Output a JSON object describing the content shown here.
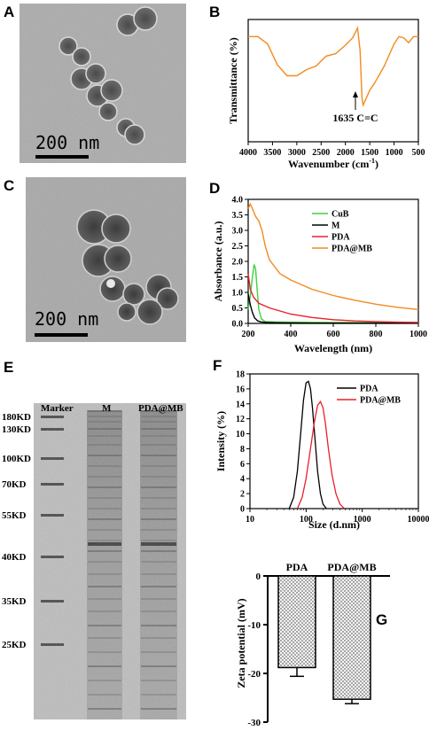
{
  "panels": {
    "A": {
      "label": "A",
      "scale_bar": "200 nm",
      "scale_value_nm": 200
    },
    "B": {
      "label": "B",
      "ylabel": "Transmittance (%)",
      "xlabel": "Wavenumber (cm",
      "xlabel_sup": "-1",
      "xlabel_close": ")",
      "annotation": "1635 C=C"
    },
    "C": {
      "label": "C",
      "scale_bar": "200 nm",
      "scale_value_nm": 200
    },
    "D": {
      "label": "D",
      "ylabel": "Absorbance (a.u.)",
      "xlabel": "Wavelength (nm)",
      "legend": [
        "CuB",
        "M",
        "PDA",
        "PDA@MB"
      ]
    },
    "E": {
      "label": "E",
      "col_headers": [
        "Marker",
        "M",
        "PDA@MB"
      ],
      "markers": [
        "180KD",
        "130KD",
        "100KD",
        "70KD",
        "55KD",
        "40KD",
        "35KD",
        "25KD"
      ]
    },
    "F": {
      "label": "F",
      "ylabel": "Intensity (%)",
      "xlabel": "Size (d.nm)",
      "legend": [
        "PDA",
        "PDA@MB"
      ]
    },
    "G": {
      "label": "G",
      "ylabel": "Zeta potential (mV)",
      "categories": [
        "PDA",
        "PDA@MB"
      ]
    }
  },
  "chart_data": [
    {
      "id": "B",
      "type": "line",
      "xlabel": "Wavenumber (cm-1)",
      "ylabel": "Transmittance (%)",
      "xlim": [
        4000,
        500
      ],
      "x_reversed": true,
      "xticks": [
        4000,
        3500,
        3000,
        2500,
        2000,
        1500,
        1000,
        500
      ],
      "yticks_shown": false,
      "color": "#f28a1e",
      "series": [
        {
          "x": [
            4000,
            3800,
            3600,
            3400,
            3200,
            3000,
            2800,
            2600,
            2400,
            2200,
            2000,
            1850,
            1750,
            1700,
            1660,
            1635,
            1580,
            1500,
            1400,
            1300,
            1200,
            1100,
            1000,
            900,
            800,
            700,
            600,
            500
          ],
          "y": [
            0.86,
            0.86,
            0.8,
            0.63,
            0.54,
            0.54,
            0.59,
            0.62,
            0.7,
            0.72,
            0.79,
            0.85,
            0.93,
            0.75,
            0.36,
            0.3,
            0.35,
            0.42,
            0.48,
            0.55,
            0.62,
            0.71,
            0.8,
            0.86,
            0.85,
            0.81,
            0.86,
            0.86
          ]
        }
      ]
    },
    {
      "id": "D",
      "type": "line",
      "xlabel": "Wavelength (nm)",
      "ylabel": "Absorbance (a.u.)",
      "xlim": [
        200,
        1000
      ],
      "ylim": [
        0,
        4.0
      ],
      "xticks": [
        200,
        400,
        600,
        800,
        1000
      ],
      "yticks": [
        0.0,
        0.5,
        1.0,
        1.5,
        2.0,
        2.5,
        3.0,
        3.5,
        4.0
      ],
      "legend_position": "top-right",
      "series": [
        {
          "name": "CuB",
          "color": "#3fd23f",
          "x": [
            200,
            210,
            220,
            228,
            235,
            242,
            250,
            262,
            280,
            320,
            400,
            600,
            800,
            1000
          ],
          "y": [
            0.45,
            0.9,
            1.5,
            1.9,
            1.75,
            1.1,
            0.45,
            0.15,
            0.06,
            0.05,
            0.04,
            0.03,
            0.03,
            0.03
          ]
        },
        {
          "name": "M",
          "color": "#000000",
          "x": [
            200,
            210,
            220,
            230,
            245,
            260,
            290,
            350,
            500,
            700,
            1000
          ],
          "y": [
            0.95,
            0.6,
            0.35,
            0.18,
            0.08,
            0.05,
            0.03,
            0.02,
            0.01,
            0.01,
            0.01
          ]
        },
        {
          "name": "PDA",
          "color": "#e8202a",
          "x": [
            200,
            210,
            225,
            250,
            300,
            400,
            500,
            600,
            700,
            800,
            900,
            1000
          ],
          "y": [
            1.6,
            1.1,
            0.85,
            0.65,
            0.5,
            0.3,
            0.19,
            0.12,
            0.08,
            0.06,
            0.04,
            0.03
          ]
        },
        {
          "name": "PDA@MB",
          "color": "#f28a1e",
          "x": [
            200,
            210,
            220,
            235,
            250,
            265,
            280,
            300,
            350,
            400,
            500,
            600,
            700,
            800,
            900,
            1000
          ],
          "y": [
            3.7,
            3.85,
            3.7,
            3.45,
            3.3,
            3.0,
            2.5,
            2.05,
            1.6,
            1.4,
            1.1,
            0.9,
            0.75,
            0.62,
            0.52,
            0.45
          ]
        }
      ]
    },
    {
      "id": "F",
      "type": "line",
      "xlabel": "Size (d.nm)",
      "ylabel": "Intensity (%)",
      "x_scale": "log",
      "xlim": [
        10,
        10000
      ],
      "ylim": [
        0,
        18
      ],
      "xticks": [
        10,
        100,
        1000,
        10000
      ],
      "yticks": [
        0,
        2,
        4,
        6,
        8,
        10,
        12,
        14,
        16,
        18
      ],
      "legend_position": "top-right",
      "series": [
        {
          "name": "PDA",
          "color": "#000000",
          "x": [
            50,
            60,
            70,
            80,
            90,
            100,
            110,
            120,
            130,
            145,
            160,
            180,
            200,
            230
          ],
          "y": [
            0,
            1.5,
            5,
            10,
            14.5,
            16.8,
            17.0,
            16.0,
            13.5,
            9,
            5,
            2,
            0.6,
            0
          ]
        },
        {
          "name": "PDA@MB",
          "color": "#e8202a",
          "x": [
            70,
            85,
            100,
            120,
            140,
            160,
            180,
            200,
            220,
            250,
            290,
            340,
            400,
            480
          ],
          "y": [
            0,
            1.5,
            4,
            8,
            11.5,
            13.8,
            14.3,
            13.5,
            11.5,
            8,
            4.5,
            2,
            0.6,
            0
          ]
        }
      ]
    },
    {
      "id": "G",
      "type": "bar",
      "ylabel": "Zeta potential (mV)",
      "categories": [
        "PDA",
        "PDA@MB"
      ],
      "values": [
        -18.8,
        -25.3
      ],
      "errors": [
        1.8,
        0.9
      ],
      "ylim": [
        -30,
        0
      ],
      "yticks": [
        0,
        -10,
        -20,
        -30
      ]
    }
  ]
}
